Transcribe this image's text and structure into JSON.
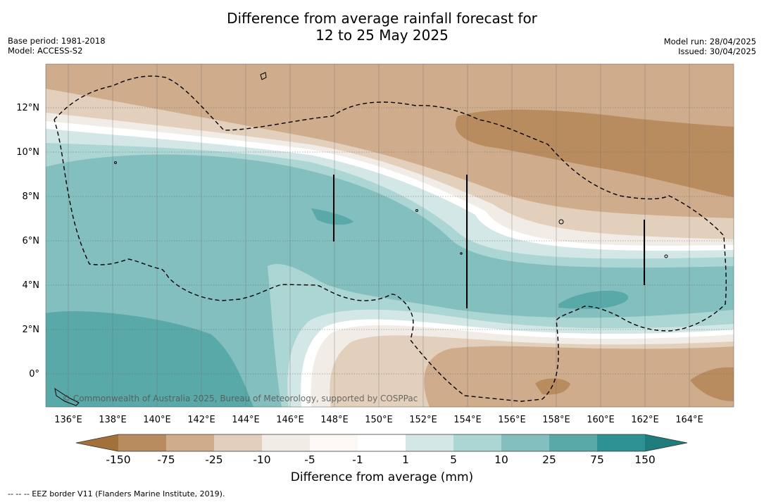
{
  "header": {
    "title_line1": "Difference from average rainfall forecast for",
    "title_line2": "12 to 25 May 2025",
    "base_period": "Base period: 1981-2018",
    "model": "Model: ACCESS-S2",
    "model_run": "Model run: 28/04/2025",
    "issued": "Issued: 30/04/2025"
  },
  "map": {
    "lat_labels": [
      "12°N",
      "10°N",
      "8°N",
      "6°N",
      "4°N",
      "2°N",
      "0°"
    ],
    "lon_labels": [
      "136°E",
      "138°E",
      "140°E",
      "142°E",
      "144°E",
      "146°E",
      "148°E",
      "150°E",
      "152°E",
      "154°E",
      "156°E",
      "158°E",
      "160°E",
      "162°E",
      "164°E"
    ],
    "copyright": "© Commonwealth of Australia 2025, Bureau of Meteorology, supported by COSPPac",
    "colors": {
      "c_lt_150": "#a3703a",
      "c_m150_m75": "#b98c5f",
      "c_m75_m25": "#cfad8c",
      "c_m25_m10": "#e3d0bc",
      "c_m10_m5": "#f2ece6",
      "c_m5_m1": "#fbf8f5",
      "c_m1_1": "#ffffff",
      "c_1_5": "#d3e7e6",
      "c_5_10": "#acd6d4",
      "c_10_25": "#83bfbf",
      "c_25_75": "#5aa9a9",
      "c_75_150": "#2e9292",
      "c_gt_150": "#1e7c7c"
    }
  },
  "colorbar": {
    "ticks": [
      "-150",
      "-75",
      "-25",
      "-10",
      "-5",
      "-1",
      "1",
      "5",
      "10",
      "25",
      "75",
      "150"
    ],
    "title": "Difference from average (mm)"
  },
  "footer": {
    "legend_note": "--  --  -- EEZ border V11 (Flanders Marine Institute, 2019)."
  }
}
